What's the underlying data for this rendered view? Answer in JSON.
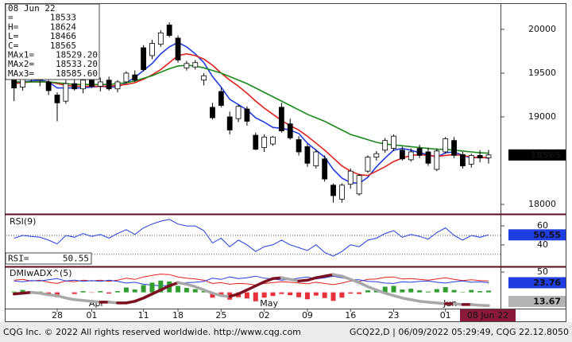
{
  "chart_data": [
    {
      "type": "candlestick",
      "categories": [
        null,
        null,
        null,
        null,
        null,
        "28",
        null,
        null,
        null,
        "01",
        null,
        null,
        null,
        null,
        null,
        "11",
        null,
        null,
        null,
        "18",
        null,
        null,
        null,
        null,
        "25",
        null,
        null,
        null,
        null,
        "02",
        null,
        null,
        null,
        null,
        "09",
        null,
        null,
        null,
        null,
        "16",
        null,
        null,
        null,
        null,
        "23",
        null,
        null,
        null,
        null,
        null,
        "01",
        null,
        null,
        null,
        null,
        "08 Jun 22"
      ],
      "months": [
        null,
        null,
        null,
        null,
        null,
        null,
        null,
        null,
        null,
        "Apr",
        null,
        null,
        null,
        null,
        null,
        null,
        null,
        null,
        null,
        null,
        null,
        null,
        null,
        null,
        null,
        null,
        null,
        null,
        null,
        "May",
        null,
        null,
        null,
        null,
        null,
        null,
        null,
        null,
        null,
        null,
        null,
        null,
        null,
        null,
        null,
        null,
        null,
        null,
        null,
        null,
        "Jun",
        null,
        null,
        null,
        null,
        null
      ],
      "open": [
        19420,
        19340,
        19470,
        19450,
        19400,
        19250,
        19180,
        19380,
        19320,
        19420,
        19350,
        19420,
        19320,
        19400,
        19480,
        19790,
        19700,
        19830,
        20050,
        19900,
        19560,
        19570,
        19420,
        19110,
        19290,
        19000,
        18980,
        19090,
        18790,
        18650,
        18690,
        19110,
        18920,
        18740,
        18660,
        18440,
        18520,
        18220,
        18060,
        18230,
        18120,
        18380,
        18540,
        18620,
        18640,
        18620,
        18510,
        18640,
        18600,
        18400,
        18600,
        18730,
        18570,
        18460,
        18560,
        18533
      ],
      "high": [
        19470,
        19520,
        19560,
        19500,
        19450,
        19280,
        19420,
        19450,
        19460,
        19480,
        19450,
        19460,
        19420,
        19520,
        19530,
        19820,
        19880,
        19990,
        20080,
        19930,
        19640,
        19650,
        19500,
        19160,
        19330,
        19060,
        19140,
        19120,
        18820,
        18800,
        18780,
        19160,
        18980,
        18780,
        18690,
        18630,
        18560,
        18240,
        18240,
        18410,
        18350,
        18560,
        18610,
        18760,
        18800,
        18660,
        18640,
        18680,
        18650,
        18640,
        18770,
        18770,
        18600,
        18580,
        18620,
        18624
      ],
      "low": [
        19180,
        19300,
        19400,
        19350,
        19250,
        18950,
        19150,
        19300,
        19270,
        19330,
        19290,
        19300,
        19280,
        19380,
        19400,
        19520,
        19660,
        19800,
        19910,
        19620,
        19530,
        19540,
        19360,
        18970,
        19110,
        18800,
        18940,
        18900,
        18620,
        18600,
        18670,
        18820,
        18740,
        18560,
        18430,
        18410,
        18260,
        18020,
        18020,
        18180,
        18100,
        18360,
        18500,
        18590,
        18610,
        18500,
        18490,
        18530,
        18440,
        18380,
        18580,
        18530,
        18410,
        18420,
        18480,
        18466
      ],
      "close": [
        19330,
        19470,
        19450,
        19420,
        19300,
        19160,
        19380,
        19320,
        19420,
        19350,
        19400,
        19320,
        19400,
        19500,
        19420,
        19540,
        19840,
        19960,
        19930,
        19650,
        19610,
        19620,
        19470,
        18990,
        19130,
        18850,
        19120,
        18950,
        18630,
        18770,
        18770,
        18840,
        18760,
        18600,
        18470,
        18600,
        18290,
        18100,
        18220,
        18380,
        18330,
        18540,
        18580,
        18730,
        18780,
        18520,
        18600,
        18560,
        18470,
        18610,
        18750,
        18560,
        18440,
        18560,
        18530,
        18565
      ],
      "readout": {
        "open": "=",
        "high": "H=",
        "low": "L=",
        "close": "C="
      },
      "series": [
        {
          "name": "MAx1=",
          "color": "#1f3de0",
          "values": [
            19380,
            19400,
            19410,
            19420,
            19400,
            19330,
            19330,
            19330,
            19330,
            19340,
            19350,
            19340,
            19340,
            19390,
            19450,
            19530,
            19610,
            19720,
            19800,
            19850,
            19800,
            19720,
            19620,
            19460,
            19340,
            19200,
            19140,
            19080,
            18990,
            18940,
            18880,
            18870,
            18850,
            18810,
            18700,
            18620,
            18540,
            18400,
            18300,
            18250,
            18240,
            18310,
            18430,
            18530,
            18620,
            18640,
            18620,
            18590,
            18570,
            18540,
            18590,
            18600,
            18560,
            18530,
            18540,
            18529.2
          ],
          "value_labels": [
            null,
            null,
            null,
            null,
            null,
            null,
            null,
            null,
            null,
            null,
            null,
            null,
            null,
            null,
            null,
            null,
            null,
            null,
            null,
            null,
            null,
            null,
            null,
            null,
            null,
            null,
            null,
            null,
            null,
            null,
            null,
            null,
            null,
            null,
            null,
            null,
            null,
            null,
            null,
            null,
            null,
            null,
            null,
            null,
            null,
            null,
            null,
            null,
            null,
            null,
            null,
            null,
            null,
            null,
            null,
            "18529.20"
          ]
        },
        {
          "name": "MAx2=",
          "color": "#e0201a",
          "values": [
            19380,
            19390,
            19400,
            19400,
            19400,
            19380,
            19360,
            19350,
            19350,
            19350,
            19350,
            19350,
            19360,
            19370,
            19390,
            19430,
            19480,
            19540,
            19620,
            19700,
            19720,
            19700,
            19660,
            19590,
            19500,
            19420,
            19350,
            19270,
            19180,
            19100,
            19030,
            18960,
            18900,
            18850,
            18780,
            18700,
            18620,
            18530,
            18440,
            18380,
            18340,
            18330,
            18380,
            18430,
            18490,
            18530,
            18560,
            18570,
            18560,
            18550,
            18560,
            18570,
            18560,
            18540,
            18535,
            18533.2
          ],
          "value_labels": [
            null,
            null,
            null,
            null,
            null,
            null,
            null,
            null,
            null,
            null,
            null,
            null,
            null,
            null,
            null,
            null,
            null,
            null,
            null,
            null,
            null,
            null,
            null,
            null,
            null,
            null,
            null,
            null,
            null,
            null,
            null,
            null,
            null,
            null,
            null,
            null,
            null,
            null,
            null,
            null,
            null,
            null,
            null,
            null,
            null,
            null,
            null,
            null,
            null,
            null,
            null,
            null,
            null,
            null,
            null,
            "18533.20"
          ]
        },
        {
          "name": "MAx3=",
          "color": "#1a8a1a",
          "values": [
            19400,
            19400,
            19400,
            19400,
            19400,
            19390,
            19380,
            19370,
            19370,
            19370,
            19370,
            19370,
            19380,
            19390,
            19410,
            19440,
            19470,
            19510,
            19550,
            19580,
            19590,
            19580,
            19560,
            19530,
            19500,
            19460,
            19420,
            19380,
            19330,
            19280,
            19230,
            19180,
            19130,
            19080,
            19030,
            18990,
            18950,
            18900,
            18850,
            18800,
            18770,
            18740,
            18710,
            18690,
            18680,
            18670,
            18660,
            18650,
            18640,
            18630,
            18630,
            18620,
            18610,
            18600,
            18590,
            18585.6
          ],
          "value_labels": [
            null,
            null,
            null,
            null,
            null,
            null,
            null,
            null,
            null,
            null,
            null,
            null,
            null,
            null,
            null,
            null,
            null,
            null,
            null,
            null,
            null,
            null,
            null,
            null,
            null,
            null,
            null,
            null,
            null,
            null,
            null,
            null,
            null,
            null,
            null,
            null,
            null,
            null,
            null,
            null,
            null,
            null,
            null,
            null,
            null,
            null,
            null,
            null,
            null,
            null,
            null,
            null,
            null,
            null,
            null,
            "18585.60"
          ]
        }
      ],
      "ylim": [
        17900,
        20290
      ],
      "yticks": [
        18000,
        19000,
        19500,
        20000
      ]
    },
    {
      "type": "line",
      "title": "RSI(9)",
      "readout": "RSI=",
      "series": [
        {
          "color": "#1f3de0",
          "values": [
            47,
            50,
            49,
            48,
            45,
            41,
            50,
            48,
            52,
            49,
            51,
            47,
            52,
            56,
            51,
            58,
            62,
            65,
            67,
            62,
            60,
            60,
            55,
            42,
            47,
            38,
            45,
            40,
            33,
            38,
            40,
            45,
            40,
            37,
            34,
            40,
            32,
            28,
            33,
            40,
            38,
            45,
            47,
            52,
            55,
            48,
            51,
            49,
            46,
            53,
            58,
            50,
            45,
            50,
            48,
            50.55
          ]
        }
      ],
      "ylim": [
        18,
        71
      ],
      "yticks": [
        40,
        60
      ],
      "levels": [
        30,
        50
      ]
    },
    {
      "type": "dmi",
      "title": "DMIwADX^(5)",
      "series": [
        {
          "color": "#e0201a",
          "values": [
            30,
            32,
            28,
            30,
            25,
            22,
            28,
            26,
            30,
            28,
            30,
            27,
            30,
            35,
            32,
            38,
            42,
            45,
            44,
            38,
            35,
            33,
            30,
            22,
            24,
            20,
            22,
            21,
            18,
            22,
            24,
            26,
            25,
            23,
            21,
            25,
            22,
            19,
            23,
            28,
            27,
            32,
            33,
            37,
            38,
            33,
            34,
            32,
            30,
            33,
            36,
            32,
            29,
            31,
            29,
            28
          ]
        },
        {
          "color": "#1f3de0",
          "values": [
            28,
            26,
            29,
            28,
            31,
            34,
            28,
            30,
            27,
            29,
            27,
            30,
            27,
            23,
            25,
            20,
            18,
            16,
            17,
            22,
            24,
            25,
            27,
            35,
            32,
            38,
            34,
            36,
            40,
            35,
            33,
            30,
            32,
            35,
            38,
            33,
            36,
            40,
            36,
            31,
            31,
            27,
            26,
            23,
            22,
            26,
            25,
            27,
            28,
            25,
            23,
            26,
            28,
            25,
            26,
            23.76
          ]
        },
        {
          "type": "bar",
          "colors": {
            "positive": "#2f9e2f",
            "negative": "#e8303a"
          },
          "values": [
            2,
            6,
            -1,
            2,
            -6,
            -12,
            0,
            -4,
            3,
            -1,
            3,
            -3,
            3,
            12,
            7,
            18,
            24,
            29,
            27,
            16,
            11,
            8,
            3,
            -13,
            -8,
            -18,
            -12,
            -15,
            -22,
            -13,
            -9,
            -4,
            -7,
            -12,
            -17,
            -8,
            -14,
            -21,
            -13,
            -3,
            -4,
            5,
            7,
            14,
            16,
            7,
            9,
            5,
            2,
            8,
            13,
            6,
            1,
            6,
            3,
            4.24
          ]
        },
        {
          "axis": "y2",
          "colors": {
            "rising": "#7a1020",
            "falling": "#a8a8a8"
          },
          "values": [
            28,
            29,
            30,
            29,
            27,
            26,
            23,
            21,
            20,
            19,
            18,
            18,
            17,
            17,
            19,
            23,
            28,
            33,
            38,
            42,
            40,
            37,
            33,
            29,
            26,
            25,
            28,
            33,
            38,
            43,
            47,
            48,
            46,
            44,
            45,
            48,
            50,
            52,
            50,
            46,
            42,
            37,
            33,
            29,
            26,
            23,
            21,
            19,
            18,
            17,
            16,
            16,
            15,
            15,
            14,
            13.67
          ]
        }
      ],
      "ylim": [
        -40,
        60
      ],
      "yticks": [
        50
      ],
      "y2lim": [
        10,
        60
      ]
    }
  ],
  "footer": {
    "left": "CQG Inc. © 2022 All rights reserved worldwide. http://www.cqg.com",
    "right": "GCQ22,D | 06/09/2022 05:29:49, CQG 22.12.8050"
  }
}
